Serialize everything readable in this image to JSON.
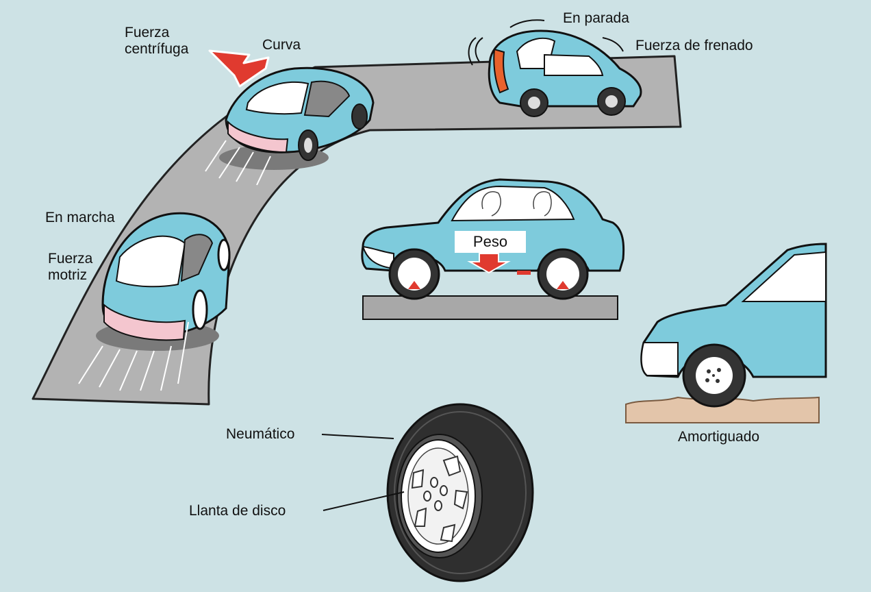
{
  "colors": {
    "background": "#cde2e5",
    "car_body": "#7ecbdc",
    "road": "#b3b3b3",
    "force_arrow": "#e03a2f",
    "ground": "#a8a8a8",
    "soil": "#e3c5aa",
    "tire": "#2f2f2f"
  },
  "labels": {
    "centrifugal_force": "Fuerza\ncentrífuga",
    "curve": "Curva",
    "stopping": "En parada",
    "braking_force": "Fuerza de frenado",
    "driving": "En marcha",
    "driving_force": "Fuerza\nmotriz",
    "weight": "Peso",
    "cushioning": "Amortiguado",
    "tire": "Neumático",
    "disc_wheel": "Llanta de disco"
  },
  "icons": [
    "car-driving-icon",
    "car-cornering-icon",
    "car-braking-icon",
    "car-side-weight-icon",
    "car-cushioning-icon",
    "tire-wheel-icon"
  ]
}
